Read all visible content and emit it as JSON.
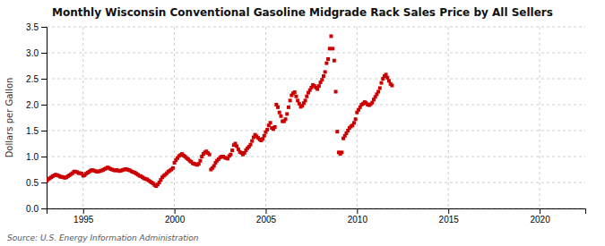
{
  "chart_data": {
    "type": "scatter",
    "title": "Monthly Wisconsin Conventional Gasoline Midgrade Rack Sales Price by All Sellers",
    "ylabel": "Dollars per Gallon",
    "source": "Source: U.S. Energy Information Administration",
    "color": "#cc0000",
    "marker": "square",
    "grid": true,
    "xlim": [
      1993.0,
      2022.5
    ],
    "ylim": [
      0.0,
      3.5
    ],
    "xticks": [
      1995,
      2000,
      2005,
      2010,
      2015,
      2020
    ],
    "yticks": [
      {
        "value": 0.0,
        "label": "0.0"
      },
      0.5,
      {
        "value": 1.0,
        "label": "1.0"
      },
      1.5,
      {
        "value": 2.0,
        "label": "2.0"
      },
      2.5,
      {
        "value": 3.0,
        "label": "3.0"
      },
      3.5
    ],
    "x": [
      1993.0,
      1993.083,
      1993.167,
      1993.25,
      1993.333,
      1993.417,
      1993.5,
      1993.583,
      1993.667,
      1993.75,
      1993.833,
      1993.917,
      1994.0,
      1994.083,
      1994.167,
      1994.25,
      1994.333,
      1994.417,
      1994.5,
      1994.583,
      1994.667,
      1994.75,
      1994.833,
      1994.917,
      1995.0,
      1995.083,
      1995.167,
      1995.25,
      1995.333,
      1995.417,
      1995.5,
      1995.583,
      1995.667,
      1995.75,
      1995.833,
      1995.917,
      1996.0,
      1996.083,
      1996.167,
      1996.25,
      1996.333,
      1996.417,
      1996.5,
      1996.583,
      1996.667,
      1996.75,
      1996.833,
      1996.917,
      1997.0,
      1997.083,
      1997.167,
      1997.25,
      1997.333,
      1997.417,
      1997.5,
      1997.583,
      1997.667,
      1997.75,
      1997.833,
      1997.917,
      1998.0,
      1998.083,
      1998.167,
      1998.25,
      1998.333,
      1998.417,
      1998.5,
      1998.583,
      1998.667,
      1998.75,
      1998.833,
      1998.917,
      1999.0,
      1999.083,
      1999.167,
      1999.25,
      1999.333,
      1999.417,
      1999.5,
      1999.583,
      1999.667,
      1999.75,
      1999.833,
      1999.917,
      2000.0,
      2000.083,
      2000.167,
      2000.25,
      2000.333,
      2000.417,
      2000.5,
      2000.583,
      2000.667,
      2000.75,
      2000.833,
      2000.917,
      2001.0,
      2001.083,
      2001.167,
      2001.25,
      2001.333,
      2001.417,
      2001.5,
      2001.583,
      2001.667,
      2001.75,
      2001.833,
      2001.917,
      2002.0,
      2002.083,
      2002.167,
      2002.25,
      2002.333,
      2002.417,
      2002.5,
      2002.583,
      2002.667,
      2002.75,
      2002.833,
      2002.917,
      2003.0,
      2003.083,
      2003.167,
      2003.25,
      2003.333,
      2003.417,
      2003.5,
      2003.583,
      2003.667,
      2003.75,
      2003.833,
      2003.917,
      2004.0,
      2004.083,
      2004.167,
      2004.25,
      2004.333,
      2004.417,
      2004.5,
      2004.583,
      2004.667,
      2004.75,
      2004.833,
      2004.917,
      2005.0,
      2005.083,
      2005.167,
      2005.25,
      2005.333,
      2005.417,
      2005.5,
      2005.583,
      2005.667,
      2005.75,
      2005.833,
      2005.917,
      2006.0,
      2006.083,
      2006.167,
      2006.25,
      2006.333,
      2006.417,
      2006.5,
      2006.583,
      2006.667,
      2006.75,
      2006.833,
      2006.917,
      2007.0,
      2007.083,
      2007.167,
      2007.25,
      2007.333,
      2007.417,
      2007.5,
      2007.583,
      2007.667,
      2007.75,
      2007.833,
      2007.917,
      2008.0,
      2008.083,
      2008.167,
      2008.25,
      2008.333,
      2008.417,
      2008.5,
      2008.583,
      2008.667,
      2008.75,
      2008.833,
      2008.917,
      2009.0,
      2009.083,
      2009.167,
      2009.25,
      2009.333,
      2009.417,
      2009.5,
      2009.583,
      2009.667,
      2009.75,
      2009.833,
      2009.917,
      2010.0,
      2010.083,
      2010.167,
      2010.25,
      2010.333,
      2010.417,
      2010.5,
      2010.583,
      2010.667,
      2010.75,
      2010.833,
      2010.917,
      2011.0,
      2011.083,
      2011.167,
      2011.25,
      2011.333,
      2011.417,
      2011.5,
      2011.583,
      2011.667,
      2011.75,
      2011.833,
      2011.917
    ],
    "values": [
      0.53,
      0.56,
      0.58,
      0.6,
      0.62,
      0.64,
      0.65,
      0.64,
      0.63,
      0.61,
      0.61,
      0.6,
      0.59,
      0.6,
      0.62,
      0.64,
      0.66,
      0.68,
      0.71,
      0.71,
      0.7,
      0.68,
      0.68,
      0.67,
      0.63,
      0.64,
      0.67,
      0.69,
      0.71,
      0.73,
      0.74,
      0.73,
      0.72,
      0.71,
      0.71,
      0.72,
      0.73,
      0.74,
      0.76,
      0.77,
      0.79,
      0.78,
      0.76,
      0.75,
      0.74,
      0.73,
      0.74,
      0.73,
      0.72,
      0.73,
      0.74,
      0.75,
      0.76,
      0.75,
      0.74,
      0.73,
      0.71,
      0.7,
      0.69,
      0.67,
      0.65,
      0.63,
      0.62,
      0.6,
      0.58,
      0.57,
      0.56,
      0.54,
      0.52,
      0.5,
      0.48,
      0.45,
      0.43,
      0.46,
      0.5,
      0.55,
      0.6,
      0.63,
      0.65,
      0.68,
      0.71,
      0.73,
      0.75,
      0.78,
      0.88,
      0.93,
      0.97,
      1.01,
      1.03,
      1.05,
      1.02,
      1.0,
      0.97,
      0.95,
      0.92,
      0.9,
      0.87,
      0.86,
      0.85,
      0.84,
      0.86,
      0.92,
      1.0,
      1.05,
      1.08,
      1.1,
      1.07,
      1.04,
      0.75,
      0.78,
      0.82,
      0.88,
      0.92,
      0.95,
      0.98,
      1.0,
      1.0,
      0.98,
      0.97,
      0.96,
      1.01,
      1.04,
      1.12,
      1.22,
      1.25,
      1.2,
      1.14,
      1.09,
      1.07,
      1.04,
      1.07,
      1.12,
      1.16,
      1.19,
      1.23,
      1.3,
      1.37,
      1.42,
      1.39,
      1.36,
      1.33,
      1.31,
      1.34,
      1.4,
      1.47,
      1.52,
      1.6,
      1.65,
      1.55,
      1.53,
      1.57,
      2.0,
      1.95,
      1.85,
      1.78,
      1.68,
      1.68,
      1.72,
      1.82,
      1.95,
      2.08,
      2.18,
      2.22,
      2.24,
      2.16,
      2.08,
      2.02,
      1.96,
      1.98,
      2.03,
      2.08,
      2.16,
      2.23,
      2.28,
      2.33,
      2.38,
      2.36,
      2.33,
      2.3,
      2.36,
      2.43,
      2.48,
      2.55,
      2.63,
      2.8,
      2.88,
      3.08,
      3.32,
      3.08,
      2.85,
      2.25,
      1.48,
      1.08,
      1.05,
      1.08,
      1.35,
      1.4,
      1.45,
      1.5,
      1.55,
      1.58,
      1.6,
      1.65,
      1.72,
      1.85,
      1.9,
      1.95,
      2.0,
      2.02,
      2.05,
      2.03,
      2.0,
      1.99,
      2.01,
      2.04,
      2.1,
      2.15,
      2.2,
      2.25,
      2.32,
      2.42,
      2.5,
      2.55,
      2.58,
      2.52,
      2.46,
      2.4,
      2.37
    ]
  }
}
